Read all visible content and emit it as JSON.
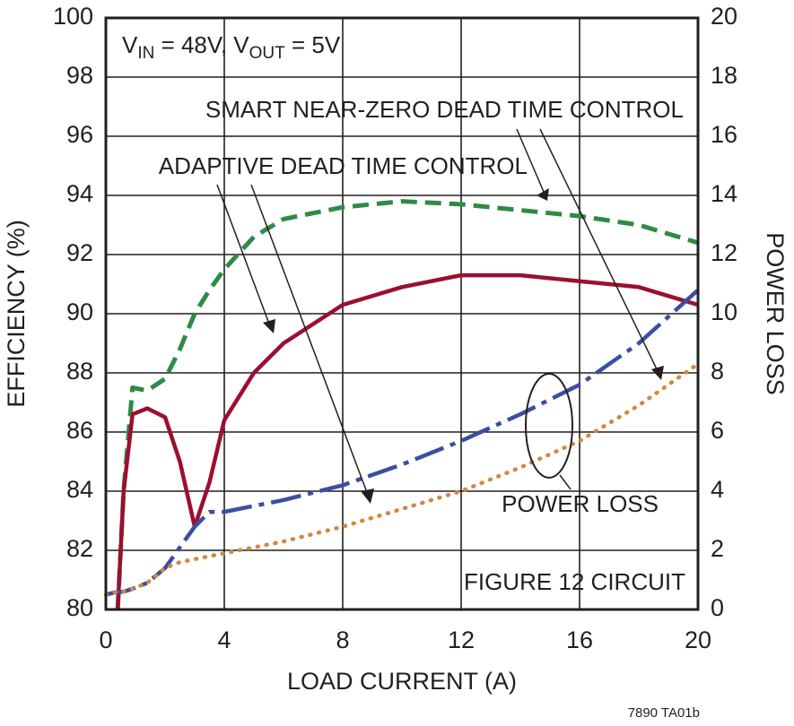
{
  "chart_data": {
    "type": "line",
    "xlabel": "LOAD CURRENT (A)",
    "ylabel": "EFFICIENCY (%)",
    "y2label": "POWER LOSS",
    "conditions": [
      "V",
      "IN",
      " = 48V, V",
      "OUT",
      " = 5V"
    ],
    "annotations": [
      "SMART NEAR-ZERO DEAD TIME CONTROL",
      "ADAPTIVE DEAD TIME CONTROL",
      "POWER LOSS",
      "FIGURE 12 CIRCUIT"
    ],
    "footnote": "7890 TA01b",
    "x": [
      0,
      0.4,
      0.6,
      0.9,
      1.4,
      2,
      2.5,
      3,
      3.5,
      4,
      5,
      6,
      8,
      10,
      12,
      14,
      16,
      18,
      20
    ],
    "series": [
      {
        "name": "SMART NEAR-ZERO DEAD TIME CONTROL",
        "color": "#2e8b46",
        "line_style": "dashed",
        "values": [
          null,
          80,
          84,
          87.5,
          87.4,
          87.8,
          88.8,
          90,
          90.8,
          91.5,
          92.6,
          93.2,
          93.6,
          93.8,
          93.7,
          93.5,
          93.3,
          93,
          92.4
        ]
      },
      {
        "name": "ADAPTIVE DEAD TIME CONTROL",
        "color": "#9b0f30",
        "line_style": "solid",
        "values": [
          null,
          80,
          84,
          86.6,
          86.8,
          86.5,
          85,
          82.8,
          84.3,
          86.4,
          88,
          89,
          90.3,
          90.9,
          91.3,
          91.3,
          91.1,
          90.9,
          90.3
        ]
      },
      {
        "name": "ADAPTIVE DEAD TIME CONTROL",
        "color": "#3a4fa0",
        "line_style": "long-dash",
        "axis": "y2",
        "values": [
          0.5,
          0.6,
          0.6,
          0.7,
          0.9,
          1.4,
          2.1,
          2.8,
          3.3,
          3.3,
          3.5,
          3.7,
          4.2,
          4.9,
          5.7,
          6.6,
          7.6,
          9.0,
          10.8
        ]
      },
      {
        "name": "SMART NEAR-ZERO DEAD TIME CONTROL",
        "color": "#d08840",
        "line_style": "dotted",
        "axis": "y2",
        "values": [
          0.5,
          0.6,
          0.6,
          0.7,
          0.9,
          1.4,
          1.6,
          1.7,
          1.8,
          1.9,
          2.1,
          2.3,
          2.8,
          3.4,
          4.0,
          4.8,
          5.7,
          6.9,
          8.3
        ]
      }
    ],
    "xlim": [
      0,
      20
    ],
    "xticks": [
      0,
      4,
      8,
      12,
      16,
      20
    ],
    "ylim": [
      80,
      100
    ],
    "yticks": [
      80,
      82,
      84,
      86,
      88,
      90,
      92,
      94,
      96,
      98,
      100
    ],
    "y2lim": [
      0,
      20
    ],
    "y2ticks": [
      0,
      2,
      4,
      6,
      8,
      10,
      12,
      14,
      16,
      18,
      20
    ],
    "grid": true
  }
}
